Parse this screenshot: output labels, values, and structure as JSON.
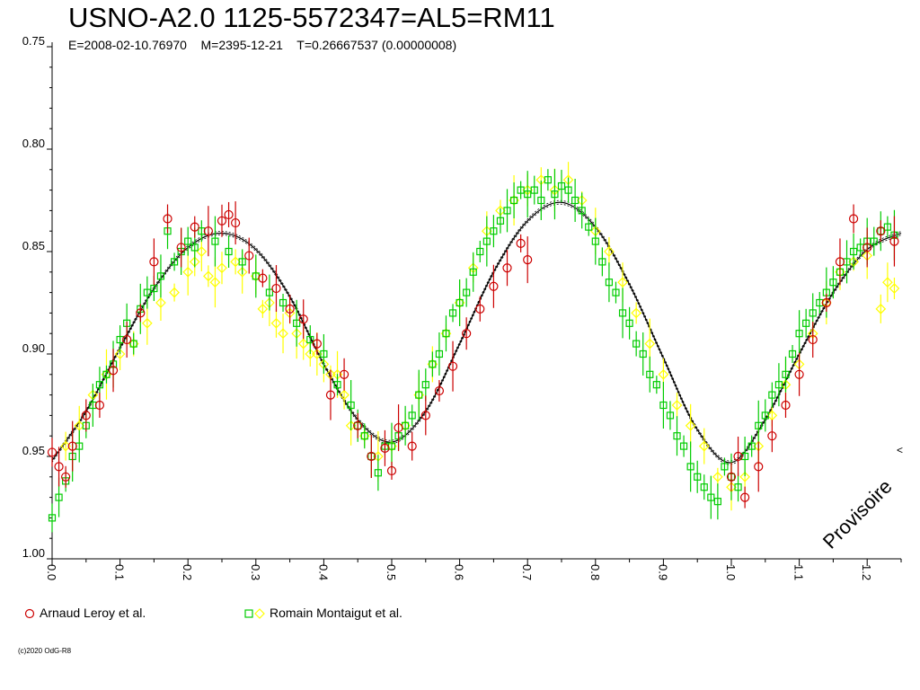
{
  "title": "USNO-A2.0 1125-5572347=AL5=RM11",
  "subtitle": "E=2008-02-10.76970    M=2395-12-21    T=0.26667537 (0.00000008)",
  "copyright": "(c)2020 OdG-R8",
  "watermark": "Provisoire",
  "colors": {
    "series1": "#cc0000",
    "series2_square": "#00cc00",
    "series2_diamond": "#ffff00",
    "fit": "#000000"
  },
  "legend": [
    {
      "label": "Arnaud Leroy et al.",
      "marker": "circle",
      "color": "#cc0000"
    },
    {
      "label": "Romain Montaigut et al.",
      "marker": "square+diamond",
      "color": "#00cc00"
    }
  ],
  "chart_data": {
    "type": "scatter",
    "title": "USNO-A2.0 1125-5572347=AL5=RM11",
    "xlabel": "",
    "ylabel": "",
    "xlim": [
      0.0,
      1.25
    ],
    "ylim": [
      1.0,
      0.75
    ],
    "y_inverted": true,
    "grid": false,
    "legend_position": "bottom-left",
    "x_ticks": [
      "0.0",
      "0.1",
      "0.2",
      "0.3",
      "0.4",
      "0.5",
      "0.6",
      "0.7",
      "0.8",
      "0.9",
      "1.0",
      "1.1",
      "1.2"
    ],
    "y_ticks": [
      "0.75",
      "0.80",
      "0.85",
      "0.90",
      "0.95",
      "1.00"
    ],
    "fit_curve": {
      "phase": [
        0.0,
        0.05,
        0.1,
        0.15,
        0.2,
        0.25,
        0.3,
        0.35,
        0.4,
        0.45,
        0.5,
        0.55,
        0.6,
        0.65,
        0.7,
        0.75,
        0.8,
        0.85,
        0.9,
        0.95,
        1.0,
        1.05,
        1.1,
        1.15,
        1.2,
        1.25
      ],
      "mag": [
        0.952,
        0.928,
        0.897,
        0.868,
        0.848,
        0.841,
        0.849,
        0.872,
        0.905,
        0.932,
        0.943,
        0.928,
        0.895,
        0.86,
        0.835,
        0.826,
        0.838,
        0.866,
        0.902,
        0.937,
        0.953,
        0.932,
        0.9,
        0.87,
        0.849,
        0.841
      ]
    },
    "series": [
      {
        "name": "Arnaud Leroy et al.",
        "marker": "circle",
        "x": [
          0.0,
          0.01,
          0.02,
          0.03,
          0.05,
          0.07,
          0.09,
          0.11,
          0.13,
          0.15,
          0.17,
          0.19,
          0.21,
          0.23,
          0.25,
          0.26,
          0.27,
          0.29,
          0.31,
          0.33,
          0.35,
          0.37,
          0.39,
          0.41,
          0.43,
          0.45,
          0.47,
          0.49,
          0.5,
          0.51,
          0.53,
          0.55,
          0.57,
          0.59,
          0.61,
          0.63,
          0.65,
          0.67,
          0.69,
          0.7,
          1.0,
          1.01,
          1.02,
          1.04,
          1.06,
          1.08,
          1.1,
          1.12,
          1.14,
          1.16,
          1.18,
          1.2,
          1.22,
          1.24
        ],
        "y": [
          0.948,
          0.955,
          0.96,
          0.945,
          0.93,
          0.925,
          0.908,
          0.893,
          0.88,
          0.855,
          0.834,
          0.848,
          0.838,
          0.84,
          0.835,
          0.832,
          0.836,
          0.852,
          0.863,
          0.868,
          0.878,
          0.883,
          0.895,
          0.92,
          0.91,
          0.935,
          0.95,
          0.946,
          0.957,
          0.936,
          0.945,
          0.93,
          0.918,
          0.906,
          0.89,
          0.878,
          0.867,
          0.858,
          0.846,
          0.854,
          0.96,
          0.95,
          0.97,
          0.955,
          0.94,
          0.925,
          0.91,
          0.893,
          0.875,
          0.855,
          0.834,
          0.848,
          0.84,
          0.845
        ]
      },
      {
        "name": "Romain Montaigut et al.",
        "marker": "square",
        "x": [
          0.0,
          0.01,
          0.02,
          0.03,
          0.04,
          0.05,
          0.06,
          0.07,
          0.08,
          0.09,
          0.1,
          0.11,
          0.12,
          0.13,
          0.14,
          0.15,
          0.16,
          0.17,
          0.18,
          0.19,
          0.2,
          0.21,
          0.22,
          0.24,
          0.26,
          0.28,
          0.3,
          0.32,
          0.34,
          0.36,
          0.38,
          0.4,
          0.42,
          0.44,
          0.45,
          0.46,
          0.47,
          0.48,
          0.49,
          0.5,
          0.51,
          0.52,
          0.53,
          0.54,
          0.55,
          0.56,
          0.57,
          0.58,
          0.59,
          0.6,
          0.61,
          0.62,
          0.63,
          0.64,
          0.65,
          0.66,
          0.67,
          0.68,
          0.69,
          0.7,
          0.71,
          0.72,
          0.73,
          0.74,
          0.75,
          0.76,
          0.77,
          0.78,
          0.79,
          0.8,
          0.81,
          0.82,
          0.83,
          0.84,
          0.85,
          0.86,
          0.87,
          0.88,
          0.89,
          0.9,
          0.91,
          0.92,
          0.93,
          0.94,
          0.95,
          0.96,
          0.97,
          0.98,
          0.99,
          1.0,
          1.01,
          1.02,
          1.03,
          1.04,
          1.05,
          1.06,
          1.07,
          1.08,
          1.09,
          1.1,
          1.11,
          1.12,
          1.13,
          1.14,
          1.15,
          1.16,
          1.17,
          1.18,
          1.19,
          1.2,
          1.21,
          1.22,
          1.23,
          1.24
        ],
        "y": [
          0.98,
          0.97,
          0.962,
          0.95,
          0.945,
          0.935,
          0.925,
          0.915,
          0.91,
          0.905,
          0.893,
          0.885,
          0.895,
          0.878,
          0.87,
          0.868,
          0.862,
          0.84,
          0.855,
          0.85,
          0.845,
          0.848,
          0.84,
          0.845,
          0.85,
          0.855,
          0.862,
          0.87,
          0.875,
          0.885,
          0.893,
          0.9,
          0.915,
          0.925,
          0.935,
          0.94,
          0.95,
          0.958,
          0.945,
          0.945,
          0.94,
          0.935,
          0.93,
          0.92,
          0.915,
          0.905,
          0.9,
          0.89,
          0.88,
          0.875,
          0.87,
          0.86,
          0.85,
          0.845,
          0.84,
          0.835,
          0.83,
          0.825,
          0.82,
          0.822,
          0.82,
          0.825,
          0.815,
          0.822,
          0.818,
          0.82,
          0.825,
          0.83,
          0.838,
          0.845,
          0.855,
          0.865,
          0.87,
          0.88,
          0.885,
          0.895,
          0.9,
          0.91,
          0.915,
          0.925,
          0.93,
          0.94,
          0.945,
          0.955,
          0.96,
          0.965,
          0.97,
          0.972,
          0.955,
          0.96,
          0.965,
          0.95,
          0.945,
          0.935,
          0.93,
          0.92,
          0.915,
          0.91,
          0.9,
          0.89,
          0.885,
          0.88,
          0.875,
          0.87,
          0.865,
          0.86,
          0.855,
          0.85,
          0.848,
          0.845,
          0.845,
          0.84,
          0.838,
          0.842
        ]
      },
      {
        "name": "",
        "marker": "diamond",
        "x": [
          0.02,
          0.04,
          0.06,
          0.08,
          0.1,
          0.12,
          0.14,
          0.16,
          0.18,
          0.2,
          0.21,
          0.22,
          0.23,
          0.24,
          0.25,
          0.27,
          0.28,
          0.3,
          0.31,
          0.32,
          0.33,
          0.34,
          0.35,
          0.36,
          0.37,
          0.38,
          0.39,
          0.4,
          0.41,
          0.42,
          0.43,
          0.44,
          0.46,
          0.48,
          0.5,
          0.52,
          0.54,
          0.56,
          0.58,
          0.6,
          0.62,
          0.64,
          0.66,
          0.68,
          0.7,
          0.72,
          0.74,
          0.76,
          0.78,
          0.8,
          0.82,
          0.84,
          0.86,
          0.88,
          0.9,
          0.92,
          0.94,
          0.96,
          0.98,
          1.0,
          1.02,
          1.04,
          1.06,
          1.08,
          1.1,
          1.12,
          1.14,
          1.16,
          1.18,
          1.2,
          1.22,
          1.23,
          1.24
        ],
        "y": [
          0.945,
          0.935,
          0.92,
          0.91,
          0.9,
          0.895,
          0.885,
          0.875,
          0.87,
          0.86,
          0.855,
          0.85,
          0.862,
          0.865,
          0.858,
          0.855,
          0.86,
          0.862,
          0.878,
          0.875,
          0.885,
          0.89,
          0.88,
          0.89,
          0.895,
          0.9,
          0.9,
          0.905,
          0.91,
          0.91,
          0.92,
          0.935,
          0.94,
          0.95,
          0.945,
          0.935,
          0.92,
          0.905,
          0.89,
          0.875,
          0.858,
          0.84,
          0.83,
          0.825,
          0.82,
          0.815,
          0.82,
          0.815,
          0.825,
          0.84,
          0.85,
          0.865,
          0.88,
          0.895,
          0.91,
          0.925,
          0.935,
          0.945,
          0.96,
          0.965,
          0.96,
          0.945,
          0.93,
          0.915,
          0.905,
          0.89,
          0.875,
          0.86,
          0.855,
          0.852,
          0.878,
          0.865,
          0.868
        ]
      }
    ]
  }
}
